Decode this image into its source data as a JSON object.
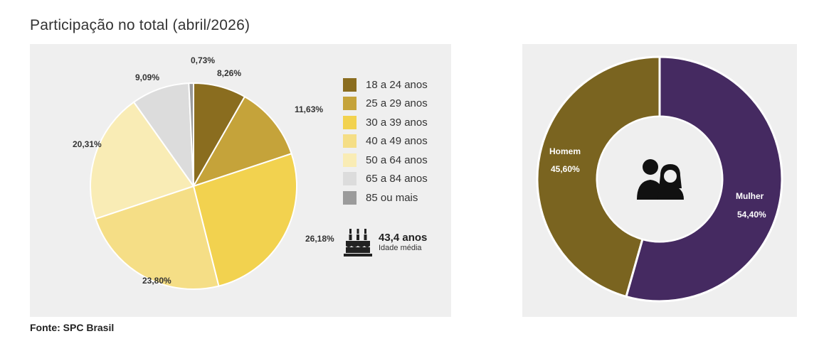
{
  "title": "Participação no total (abril/2026)",
  "source": "Fonte: SPC Brasil",
  "age": {
    "value": "43,4 anos",
    "caption": "Idade média",
    "icon": "birthday-cake-icon"
  },
  "people_icon": "couple-icon",
  "chart_data": [
    {
      "type": "pie",
      "categories": [
        "18 a 24 anos",
        "25 a 29 anos",
        "30 a 39 anos",
        "40 a 49 anos",
        "50 a 64 anos",
        "65 a 84 anos",
        "85 ou mais"
      ],
      "values": [
        8.26,
        11.63,
        26.18,
        23.8,
        20.31,
        9.09,
        0.73
      ],
      "labels": [
        "8,26%",
        "11,63%",
        "26,18%",
        "23,80%",
        "20,31%",
        "9,09%",
        "0,73%"
      ],
      "colors": [
        "#8a6d1f",
        "#c5a33a",
        "#f2d24f",
        "#f5de86",
        "#f9ecb5",
        "#dcdcdc",
        "#9b9b9b"
      ],
      "legend_position": "right"
    },
    {
      "type": "pie",
      "variant": "donut",
      "categories": [
        "Homem",
        "Mulher"
      ],
      "values": [
        45.6,
        54.4
      ],
      "labels": [
        "45,60%",
        "54,40%"
      ],
      "colors": [
        "#7a6420",
        "#452a61"
      ]
    }
  ]
}
